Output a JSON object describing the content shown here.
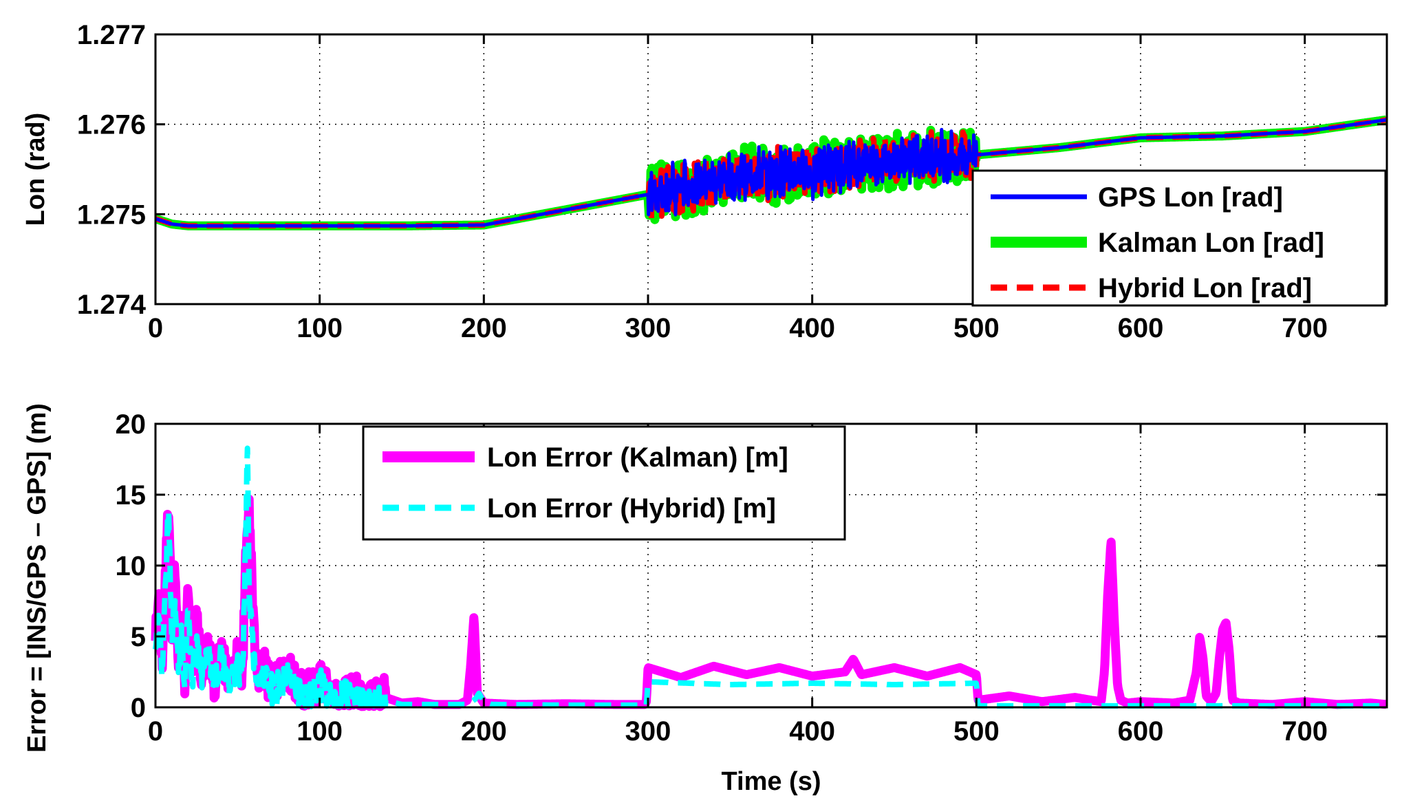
{
  "colors": {
    "gps": "#0000ff",
    "kalman": "#00ee00",
    "hybrid": "#ff0000",
    "err_kalman": "#ff00ff",
    "err_hybrid": "#00ffff",
    "grid": "#000000"
  },
  "chart_data": [
    {
      "type": "line",
      "title": "",
      "xlabel": "",
      "ylabel": "Lon (rad)",
      "xlim": [
        0,
        750
      ],
      "ylim": [
        1.274,
        1.277
      ],
      "xticks": [
        "0",
        "100",
        "200",
        "300",
        "400",
        "500",
        "600",
        "700"
      ],
      "yticks": [
        "1.274",
        "1.275",
        "1.276",
        "1.277"
      ],
      "grid": true,
      "legend_position": "bottom-right",
      "series": [
        {
          "name": "GPS Lon [rad]",
          "style": "solid",
          "x": [
            0,
            10,
            20,
            50,
            100,
            150,
            200,
            250,
            300,
            330,
            360,
            400,
            450,
            500,
            550,
            600,
            650,
            700,
            750
          ],
          "y": [
            1.27495,
            1.27489,
            1.27487,
            1.27487,
            1.27487,
            1.27487,
            1.27488,
            1.27505,
            1.27522,
            1.27533,
            1.27543,
            1.27548,
            1.2756,
            1.27566,
            1.27574,
            1.27585,
            1.27587,
            1.27592,
            1.27605
          ],
          "noise": {
            "x_start": 300,
            "x_end": 500,
            "amplitude": 0.00032
          }
        },
        {
          "name": "Kalman Lon [rad]",
          "style": "solid-wide",
          "x": [
            0,
            10,
            20,
            50,
            100,
            150,
            200,
            250,
            300,
            330,
            360,
            400,
            450,
            500,
            550,
            600,
            650,
            700,
            750
          ],
          "y": [
            1.27495,
            1.27489,
            1.27487,
            1.27487,
            1.27487,
            1.27487,
            1.27488,
            1.27505,
            1.27522,
            1.27533,
            1.27543,
            1.27548,
            1.2756,
            1.27566,
            1.27574,
            1.27585,
            1.27587,
            1.27592,
            1.27605
          ],
          "noise": {
            "x_start": 300,
            "x_end": 500,
            "amplitude": 0.00036
          }
        },
        {
          "name": "Hybrid Lon [rad]",
          "style": "dashed",
          "x": [
            0,
            10,
            20,
            50,
            100,
            150,
            200,
            250,
            300,
            330,
            360,
            400,
            450,
            500,
            550,
            600,
            650,
            700,
            750
          ],
          "y": [
            1.27495,
            1.27489,
            1.27487,
            1.27487,
            1.27487,
            1.27487,
            1.27488,
            1.27505,
            1.27522,
            1.27533,
            1.27543,
            1.27548,
            1.2756,
            1.27566,
            1.27574,
            1.27585,
            1.27587,
            1.27592,
            1.27605
          ],
          "noise": {
            "x_start": 300,
            "x_end": 500,
            "amplitude": 0.00032
          }
        }
      ]
    },
    {
      "type": "line",
      "title": "",
      "xlabel": "Time (s)",
      "ylabel": "Error = [INS/GPS – GPS] (m)",
      "xlim": [
        0,
        750
      ],
      "ylim": [
        0,
        20
      ],
      "xticks": [
        "0",
        "100",
        "200",
        "300",
        "400",
        "500",
        "600",
        "700"
      ],
      "yticks": [
        "0",
        "5",
        "10",
        "15",
        "20"
      ],
      "grid": true,
      "legend_position": "top-left",
      "series": [
        {
          "name": "Lon Error (Kalman) [m]",
          "style": "solid-wide",
          "x": [
            0,
            2,
            4,
            6,
            8,
            10,
            12,
            14,
            16,
            18,
            20,
            22,
            25,
            28,
            32,
            36,
            40,
            45,
            50,
            53,
            55,
            57,
            60,
            63,
            66,
            70,
            80,
            90,
            100,
            110,
            120,
            130,
            140,
            150,
            160,
            170,
            185,
            190,
            192,
            194,
            196,
            200,
            220,
            250,
            280,
            298,
            299,
            300,
            320,
            340,
            360,
            380,
            400,
            420,
            425,
            430,
            450,
            470,
            490,
            500,
            501,
            520,
            540,
            560,
            570,
            576,
            578,
            580,
            582,
            584,
            586,
            588,
            592,
            600,
            620,
            630,
            634,
            636,
            638,
            640,
            643,
            646,
            648,
            650,
            652,
            654,
            656,
            660,
            680,
            700,
            720,
            740,
            750
          ],
          "y": [
            5.0,
            7.8,
            3.0,
            9.0,
            14.8,
            6.0,
            9.6,
            3.2,
            6.0,
            2.0,
            8.8,
            2.2,
            6.5,
            2.5,
            5.0,
            1.6,
            4.5,
            1.6,
            3.8,
            2.0,
            11.0,
            14.0,
            4.5,
            2.0,
            3.3,
            1.2,
            2.5,
            0.8,
            2.0,
            0.6,
            1.2,
            0.4,
            0.7,
            0.3,
            0.4,
            0.2,
            0.2,
            0.5,
            3.0,
            6.5,
            1.0,
            0.3,
            0.2,
            0.25,
            0.2,
            0.2,
            0.4,
            2.8,
            2.1,
            2.9,
            2.3,
            2.8,
            2.2,
            2.5,
            3.4,
            2.3,
            2.8,
            2.2,
            2.8,
            2.3,
            0.5,
            0.8,
            0.4,
            0.7,
            0.5,
            0.4,
            2.5,
            8.0,
            11.8,
            6.0,
            1.5,
            0.5,
            0.3,
            0.4,
            0.3,
            0.5,
            2.5,
            5.0,
            3.5,
            0.8,
            0.4,
            1.0,
            3.5,
            5.5,
            6.0,
            4.0,
            0.5,
            0.3,
            0.2,
            0.4,
            0.2,
            0.3,
            0.2
          ],
          "noise": {
            "x_start": 0,
            "x_end": 140,
            "amplitude": 1.6
          }
        },
        {
          "name": "Lon Error (Hybrid) [m]",
          "style": "dashed",
          "x": [
            0,
            2,
            4,
            6,
            8,
            10,
            12,
            14,
            16,
            18,
            20,
            22,
            25,
            28,
            32,
            36,
            40,
            45,
            50,
            53,
            55,
            56,
            57,
            60,
            63,
            66,
            70,
            80,
            90,
            100,
            110,
            120,
            130,
            140,
            150,
            190,
            195,
            197,
            200,
            205,
            250,
            299,
            300,
            350,
            400,
            450,
            500,
            501,
            550,
            600,
            650,
            700,
            750
          ],
          "y": [
            4.0,
            6.5,
            2.5,
            8.0,
            14.5,
            5.0,
            8.0,
            2.5,
            5.0,
            1.5,
            7.0,
            1.8,
            5.0,
            2.0,
            4.0,
            1.2,
            3.5,
            1.2,
            3.0,
            1.5,
            12.0,
            18.4,
            8.0,
            3.0,
            1.5,
            2.5,
            1.0,
            2.0,
            0.6,
            1.5,
            0.4,
            0.8,
            0.3,
            0.5,
            0.2,
            0.2,
            0.6,
            1.0,
            0.4,
            0.2,
            0.15,
            0.15,
            1.8,
            1.6,
            1.7,
            1.6,
            1.7,
            0.1,
            0.1,
            0.1,
            0.1,
            0.1,
            0.1
          ],
          "noise": {
            "x_start": 0,
            "x_end": 140,
            "amplitude": 1.4
          }
        }
      ]
    }
  ]
}
